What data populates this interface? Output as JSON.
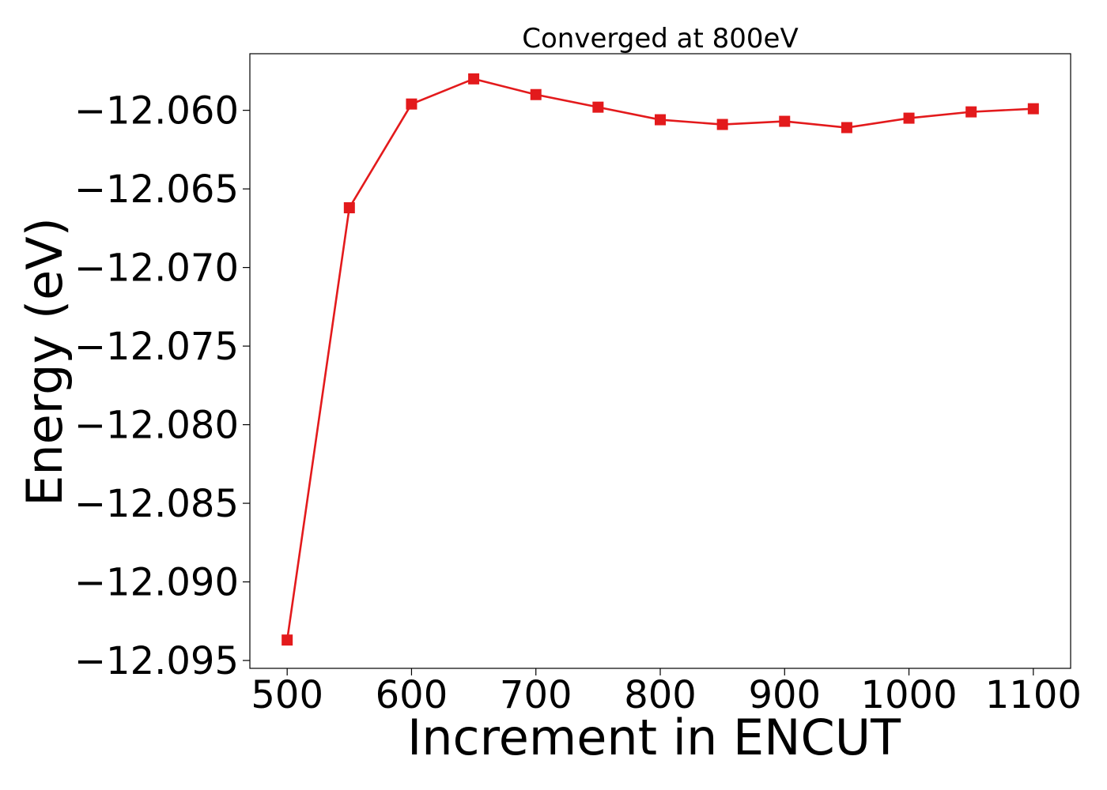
{
  "chart_data": {
    "type": "line",
    "title": "Converged at 800eV",
    "xlabel": "Increment in ENCUT",
    "ylabel": "Energy (eV)",
    "xlim": [
      470,
      1130
    ],
    "ylim": [
      -12.0955,
      -12.0564
    ],
    "xticks": [
      500,
      600,
      700,
      800,
      900,
      1000,
      1100
    ],
    "yticks": [
      -12.06,
      -12.065,
      -12.07,
      -12.075,
      -12.08,
      -12.085,
      -12.09,
      -12.095
    ],
    "ytick_labels": [
      "−12.060",
      "−12.065",
      "−12.070",
      "−12.075",
      "−12.080",
      "−12.085",
      "−12.090",
      "−12.095"
    ],
    "grid": false,
    "series": [
      {
        "color": "#e31a1c",
        "marker": "square",
        "x": [
          500,
          550,
          600,
          650,
          700,
          750,
          800,
          850,
          900,
          950,
          1000,
          1050,
          1100
        ],
        "y": [
          -12.0937,
          -12.0662,
          -12.0596,
          -12.058,
          -12.059,
          -12.0598,
          -12.0606,
          -12.0609,
          -12.0607,
          -12.0611,
          -12.0605,
          -12.0601,
          -12.0599
        ]
      }
    ]
  }
}
